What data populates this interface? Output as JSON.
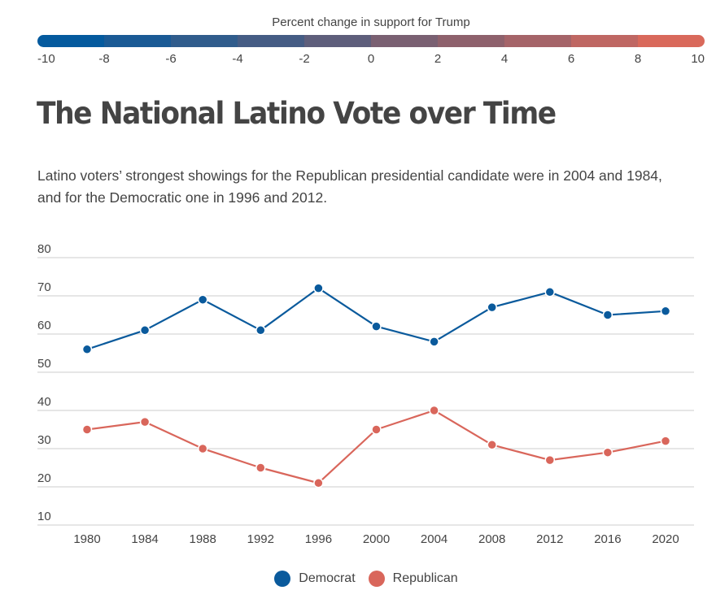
{
  "color_scale": {
    "title": "Percent change in support for Trump",
    "ticks": [
      "-10",
      "-8",
      "-6",
      "-4",
      "-2",
      "0",
      "2",
      "4",
      "6",
      "8",
      "10"
    ],
    "colors": [
      "#045a9e",
      "#1a5a95",
      "#305c8c",
      "#455c84",
      "#5e5e7b",
      "#7a6072",
      "#8e616c",
      "#a56469",
      "#bf6763",
      "#d9695b"
    ]
  },
  "title": "The National Latino Vote over Time",
  "subtitle": "Latino voters’ strongest showings for the Republican presidential candidate were in 2004 and 1984, and for the Democratic one in 1996 and 2012.",
  "chart_data": {
    "type": "line",
    "title": "The National Latino Vote over Time",
    "xlabel": "",
    "ylabel": "",
    "x": [
      1980,
      1984,
      1988,
      1992,
      1996,
      2000,
      2004,
      2008,
      2012,
      2016,
      2020
    ],
    "x_tick_labels": [
      "1980",
      "1984",
      "1988",
      "1992",
      "1996",
      "2000",
      "2004",
      "2008",
      "2012",
      "2016",
      "2020"
    ],
    "y_ticks": [
      10,
      20,
      30,
      40,
      50,
      60,
      70,
      80
    ],
    "y_tick_labels": [
      "10",
      "20",
      "30",
      "40",
      "50",
      "60",
      "70",
      "80"
    ],
    "ylim": [
      10,
      80
    ],
    "grid": true,
    "legend_position": "bottom-center",
    "series": [
      {
        "name": "Democrat",
        "color": "#0a5a9c",
        "values": [
          56,
          61,
          69,
          61,
          72,
          62,
          58,
          67,
          71,
          65,
          66
        ]
      },
      {
        "name": "Republican",
        "color": "#d9665b",
        "values": [
          35,
          37,
          30,
          25,
          21,
          35,
          40,
          31,
          27,
          29,
          32
        ]
      }
    ]
  }
}
